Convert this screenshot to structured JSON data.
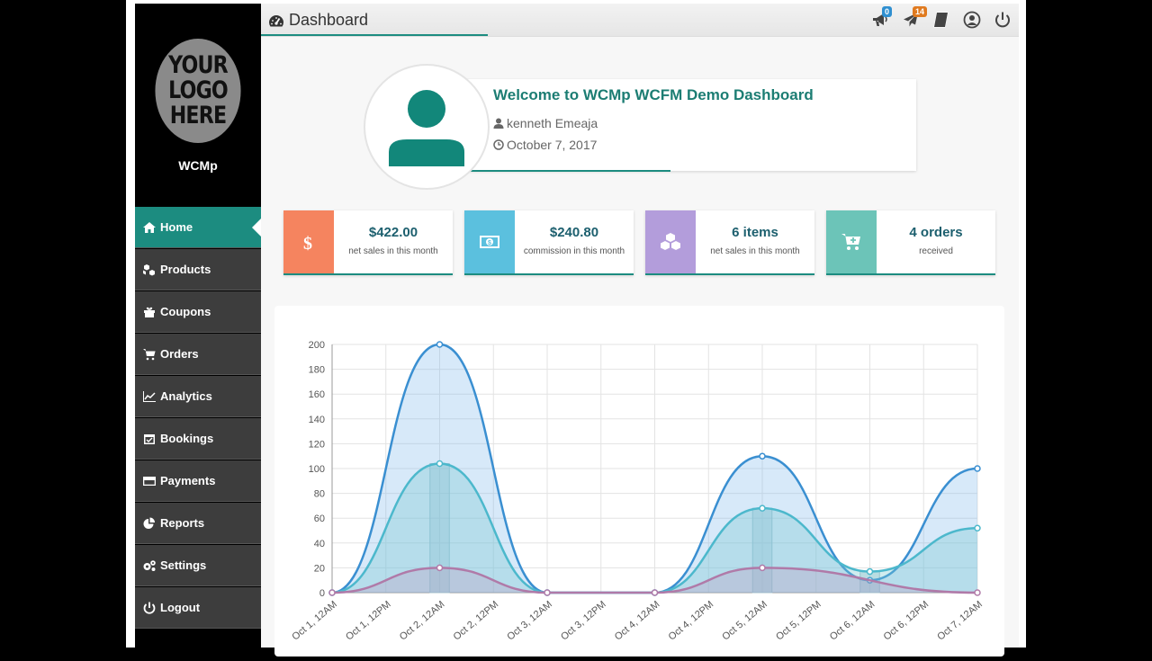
{
  "sidebar": {
    "logo_text": [
      "YOUR",
      "LOGO",
      "HERE"
    ],
    "store_name": "WCMp",
    "items": [
      {
        "label": "Home",
        "icon": "home-icon",
        "active": true
      },
      {
        "label": "Products",
        "icon": "cubes-icon"
      },
      {
        "label": "Coupons",
        "icon": "gift-icon"
      },
      {
        "label": "Orders",
        "icon": "cart-icon"
      },
      {
        "label": "Analytics",
        "icon": "line-chart-icon"
      },
      {
        "label": "Bookings",
        "icon": "calendar-check-icon"
      },
      {
        "label": "Payments",
        "icon": "credit-card-icon"
      },
      {
        "label": "Reports",
        "icon": "pie-chart-icon"
      },
      {
        "label": "Settings",
        "icon": "gears-icon"
      },
      {
        "label": "Logout",
        "icon": "power-icon"
      }
    ]
  },
  "header": {
    "title": "Dashboard",
    "icons": [
      {
        "name": "megaphone-icon",
        "badge": "0",
        "badge_color": "#2f8fd0"
      },
      {
        "name": "paper-plane-icon",
        "badge": "14",
        "badge_color": "#e07a1f"
      },
      {
        "name": "book-icon"
      },
      {
        "name": "user-circle-icon"
      },
      {
        "name": "power-icon"
      }
    ]
  },
  "welcome": {
    "title": "Welcome to WCMp WCFM Demo Dashboard",
    "user": "kenneth Emeaja",
    "date": "October 7, 2017"
  },
  "stats": [
    {
      "value": "$422.00",
      "label": "net sales in this month",
      "color": "#f5845f",
      "icon": "dollar-icon"
    },
    {
      "value": "$240.80",
      "label": "commission in this month",
      "color": "#5bc0de",
      "icon": "money-icon"
    },
    {
      "value": "6 items",
      "label": "net sales in this month",
      "color": "#b39ddb",
      "icon": "cubes-icon"
    },
    {
      "value": "4 orders",
      "label": "received",
      "color": "#6cc4b8",
      "icon": "cart-plus-icon"
    }
  ],
  "chart_data": {
    "type": "line",
    "categories": [
      "Oct 1, 12AM",
      "Oct 1, 12PM",
      "Oct 2, 12AM",
      "Oct 2, 12PM",
      "Oct 3, 12AM",
      "Oct 3, 12PM",
      "Oct 4, 12AM",
      "Oct 4, 12PM",
      "Oct 5, 12AM",
      "Oct 5, 12PM",
      "Oct 6, 12AM",
      "Oct 6, 12PM",
      "Oct 7, 12AM"
    ],
    "ylim": [
      0,
      200
    ],
    "yticks": [
      0,
      20,
      40,
      60,
      80,
      100,
      120,
      140,
      160,
      180,
      200
    ],
    "grid": true,
    "series": [
      {
        "color": "#3a8fd1",
        "fill": "rgba(124,181,236,0.30)",
        "points": [
          [
            0,
            0
          ],
          [
            2,
            200
          ],
          [
            4,
            0
          ],
          [
            6,
            0
          ],
          [
            8,
            110
          ],
          [
            10,
            10
          ],
          [
            12,
            100
          ]
        ]
      },
      {
        "color": "#4cb8cc",
        "fill": "rgba(120,200,210,0.35)",
        "points": [
          [
            0,
            0
          ],
          [
            2,
            104
          ],
          [
            4,
            0
          ],
          [
            6,
            0
          ],
          [
            8,
            68
          ],
          [
            10,
            17
          ],
          [
            12,
            52
          ]
        ]
      },
      {
        "color": "#b07aa8",
        "fill": "rgba(190,140,180,0.25)",
        "points": [
          [
            0,
            0
          ],
          [
            2,
            20
          ],
          [
            4,
            0
          ],
          [
            6,
            0
          ],
          [
            8,
            20
          ],
          [
            12,
            0
          ]
        ]
      }
    ],
    "bars": [
      {
        "x": 2,
        "value": 104,
        "color": "rgba(160,190,200,0.35)"
      },
      {
        "x": 8,
        "value": 68,
        "color": "rgba(160,190,200,0.35)"
      },
      {
        "x": 10,
        "value": 17,
        "color": "rgba(160,190,200,0.35)"
      }
    ]
  }
}
